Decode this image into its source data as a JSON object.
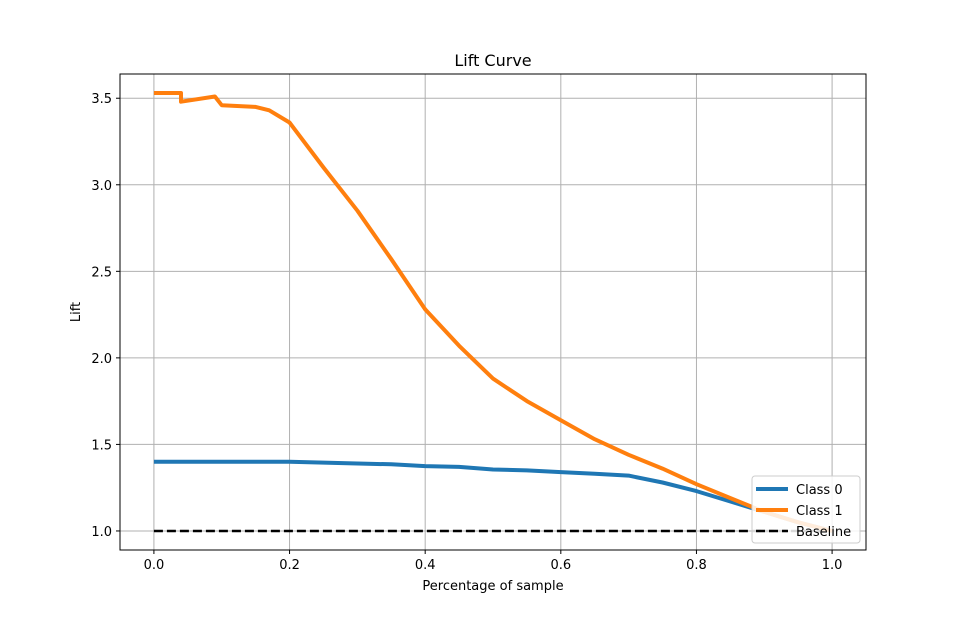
{
  "chart_data": {
    "type": "line",
    "title": "Lift Curve",
    "xlabel": "Percentage of sample",
    "ylabel": "Lift",
    "xlim": [
      -0.05,
      1.05
    ],
    "ylim": [
      0.89,
      3.64
    ],
    "xticks": [
      0.0,
      0.2,
      0.4,
      0.6,
      0.8,
      1.0
    ],
    "xtick_labels": [
      "0.0",
      "0.2",
      "0.4",
      "0.6",
      "0.8",
      "1.0"
    ],
    "yticks": [
      1.0,
      1.5,
      2.0,
      2.5,
      3.0,
      3.5
    ],
    "ytick_labels": [
      "1.0",
      "1.5",
      "2.0",
      "2.5",
      "3.0",
      "3.5"
    ],
    "grid": true,
    "legend_position": "lower-right",
    "series": [
      {
        "name": "Class 0",
        "color": "#1f77b4",
        "style": "solid",
        "x": [
          0.0,
          0.05,
          0.1,
          0.15,
          0.2,
          0.25,
          0.3,
          0.35,
          0.4,
          0.45,
          0.5,
          0.55,
          0.6,
          0.65,
          0.7,
          0.75,
          0.8,
          0.85,
          0.9,
          0.95,
          1.0
        ],
        "y": [
          1.4,
          1.4,
          1.4,
          1.4,
          1.4,
          1.395,
          1.39,
          1.385,
          1.375,
          1.37,
          1.355,
          1.35,
          1.34,
          1.33,
          1.32,
          1.28,
          1.23,
          1.17,
          1.11,
          1.05,
          1.0
        ]
      },
      {
        "name": "Class 1",
        "color": "#ff7f0e",
        "style": "solid",
        "x": [
          0.0,
          0.04,
          0.04,
          0.09,
          0.1,
          0.15,
          0.17,
          0.2,
          0.25,
          0.3,
          0.35,
          0.4,
          0.45,
          0.5,
          0.55,
          0.6,
          0.65,
          0.7,
          0.75,
          0.8,
          0.85,
          0.9,
          0.95,
          1.0
        ],
        "y": [
          3.53,
          3.53,
          3.48,
          3.51,
          3.46,
          3.45,
          3.43,
          3.36,
          3.1,
          2.85,
          2.57,
          2.28,
          2.07,
          1.88,
          1.75,
          1.64,
          1.53,
          1.44,
          1.36,
          1.27,
          1.19,
          1.11,
          1.05,
          1.0
        ]
      },
      {
        "name": "Baseline",
        "color": "#000000",
        "style": "dashed",
        "x": [
          0.0,
          1.0
        ],
        "y": [
          1.0,
          1.0
        ]
      }
    ]
  }
}
